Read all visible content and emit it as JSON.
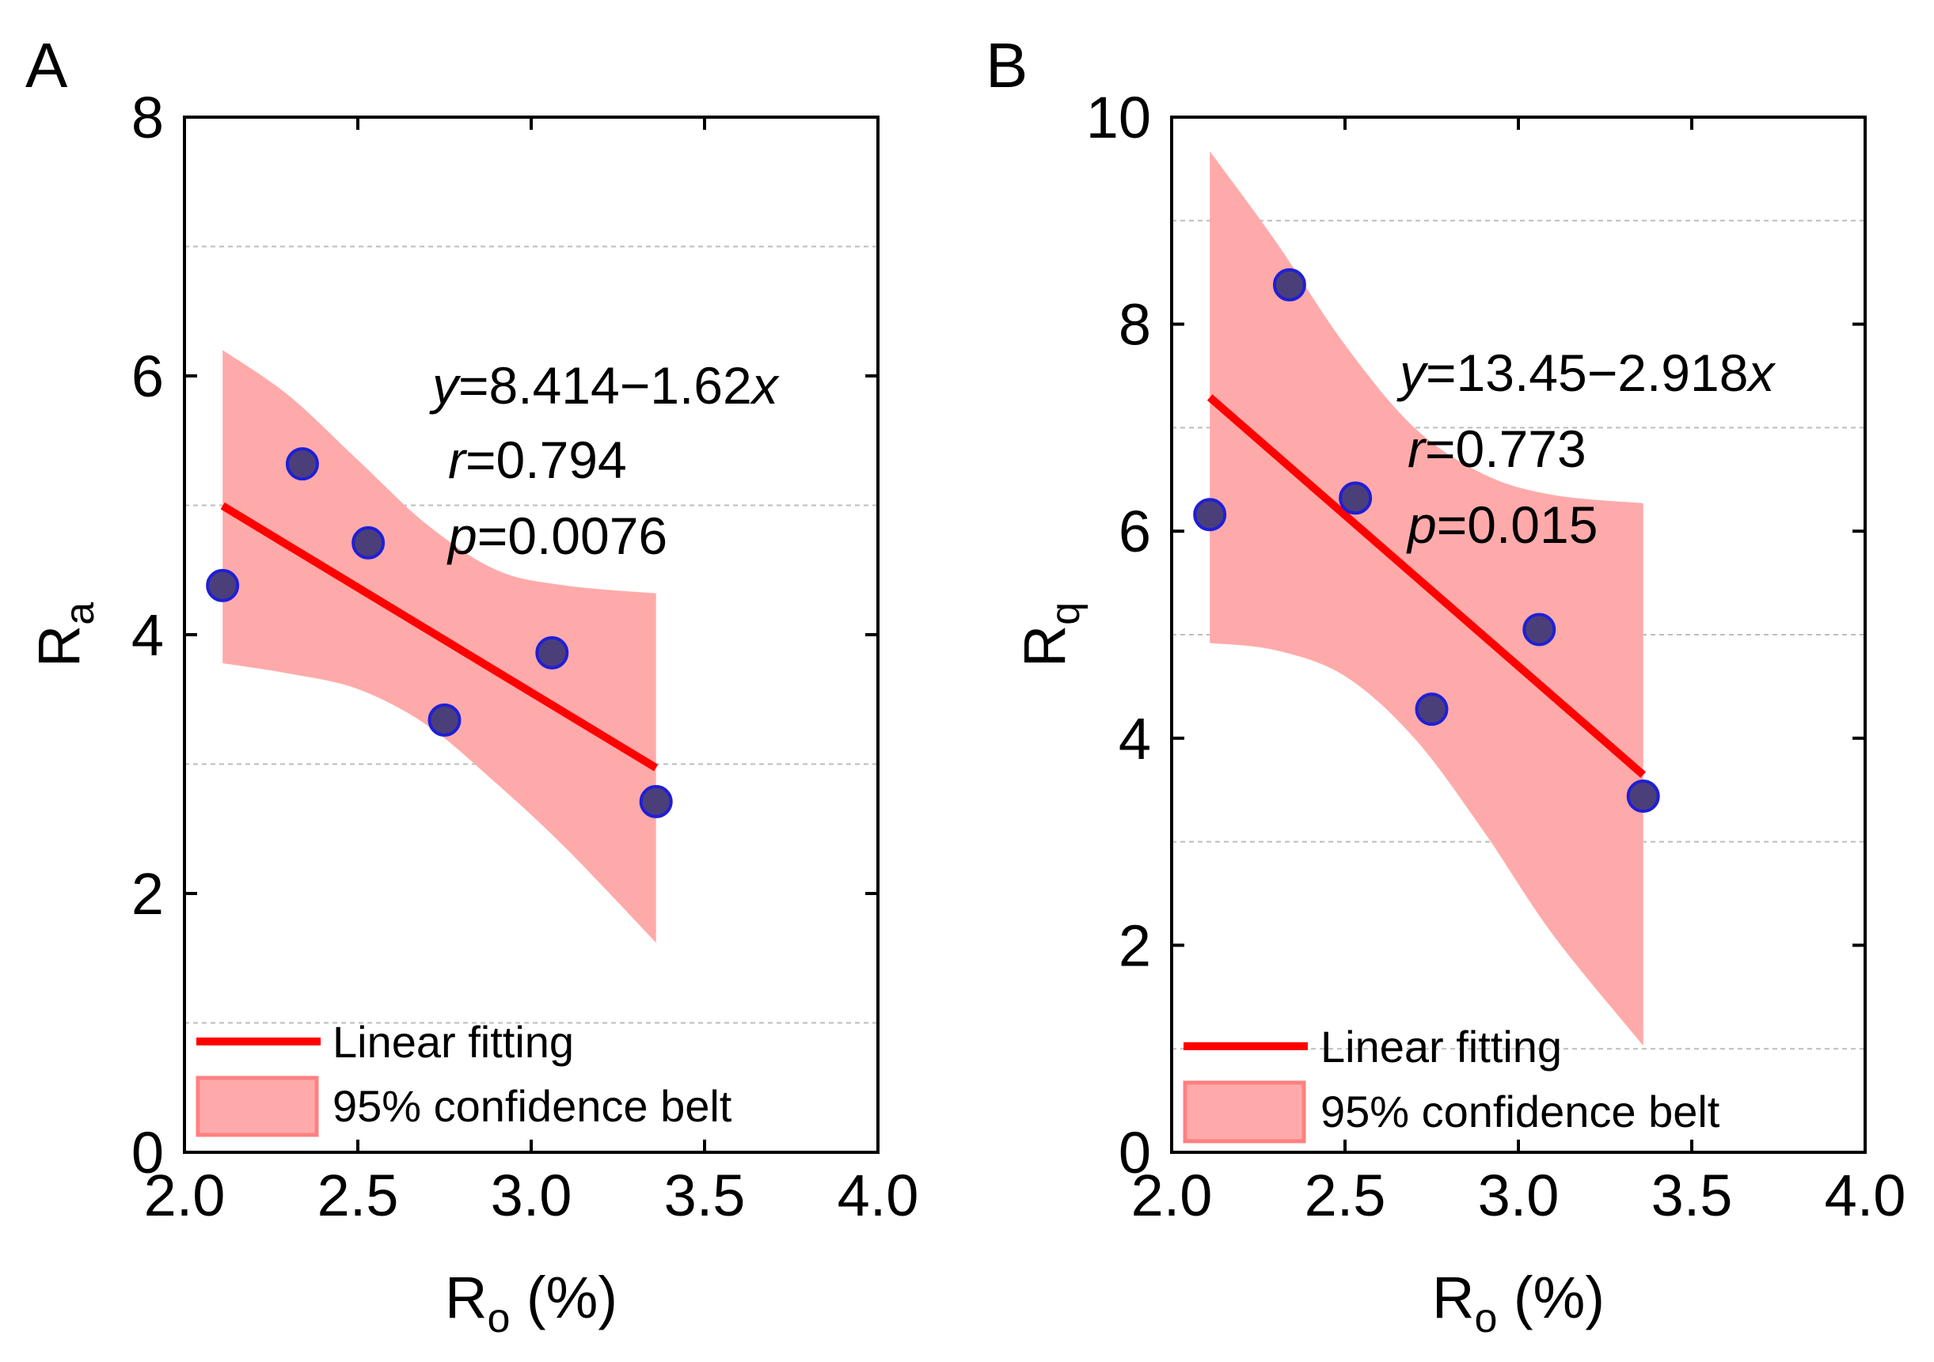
{
  "chart_data": [
    {
      "type": "scatter",
      "panel_label": "A",
      "xlabel_main": "R",
      "xlabel_sub": "o",
      "xlabel_unit": " (%)",
      "ylabel_main": "R",
      "ylabel_sub": "a",
      "xlim": [
        2.0,
        4.0
      ],
      "ylim": [
        0,
        8
      ],
      "xticks": [
        2.0,
        2.5,
        3.0,
        3.5,
        4.0
      ],
      "xtick_labels": [
        "2.0",
        "2.5",
        "3.0",
        "3.5",
        "4.0"
      ],
      "yticks": [
        0,
        2,
        4,
        6,
        8
      ],
      "ytick_labels": [
        "0",
        "2",
        "4",
        "6",
        "8"
      ],
      "y_gridlines": [
        1,
        3,
        5,
        7
      ],
      "points": {
        "x": [
          2.11,
          2.34,
          2.53,
          2.75,
          3.06,
          3.36
        ],
        "y": [
          4.38,
          5.32,
          4.71,
          3.34,
          3.86,
          2.71
        ]
      },
      "fit": {
        "x": [
          2.11,
          3.36
        ],
        "y": [
          4.996,
          2.971
        ]
      },
      "confidence_band": {
        "x": [
          2.11,
          2.3,
          2.5,
          2.7,
          2.9,
          3.1,
          3.36
        ],
        "upper": [
          6.2,
          5.85,
          5.35,
          4.85,
          4.5,
          4.38,
          4.32
        ],
        "lower": [
          3.78,
          3.7,
          3.58,
          3.3,
          2.85,
          2.35,
          1.62
        ]
      },
      "equation": {
        "y_var": "y",
        "y_rest": "=8.414−1.62",
        "x_var": "x"
      },
      "r_stat": {
        "var": "r",
        "value": "=0.794"
      },
      "p_stat": {
        "var": "p",
        "value": "=0.0076"
      },
      "legend": {
        "fit_label": "Linear fitting",
        "band_label": "95% confidence belt",
        "position": "bottom-left"
      }
    },
    {
      "type": "scatter",
      "panel_label": "B",
      "xlabel_main": "R",
      "xlabel_sub": "o",
      "xlabel_unit": " (%)",
      "ylabel_main": "R",
      "ylabel_sub": "q",
      "xlim": [
        2.0,
        4.0
      ],
      "ylim": [
        0,
        10
      ],
      "xticks": [
        2.0,
        2.5,
        3.0,
        3.5,
        4.0
      ],
      "xtick_labels": [
        "2.0",
        "2.5",
        "3.0",
        "3.5",
        "4.0"
      ],
      "yticks": [
        0,
        2,
        4,
        6,
        8,
        10
      ],
      "ytick_labels": [
        "0",
        "2",
        "4",
        "6",
        "8",
        "10"
      ],
      "y_gridlines": [
        1,
        3,
        5,
        7,
        9
      ],
      "points": {
        "x": [
          2.11,
          2.34,
          2.53,
          2.75,
          3.06,
          3.36
        ],
        "y": [
          6.16,
          8.38,
          6.32,
          4.28,
          5.05,
          3.44
        ]
      },
      "fit": {
        "x": [
          2.11,
          3.36
        ],
        "y": [
          7.293,
          3.646
        ]
      },
      "confidence_band": {
        "x": [
          2.11,
          2.3,
          2.5,
          2.7,
          2.9,
          3.1,
          3.36
        ],
        "upper": [
          9.67,
          8.8,
          7.8,
          7.0,
          6.55,
          6.35,
          6.27
        ],
        "lower": [
          4.92,
          4.85,
          4.6,
          4.0,
          3.1,
          2.1,
          1.03
        ]
      },
      "equation": {
        "y_var": "y",
        "y_rest": "=13.45−2.918",
        "x_var": "x"
      },
      "r_stat": {
        "var": "r",
        "value": "=0.773"
      },
      "p_stat": {
        "var": "p",
        "value": "=0.015"
      },
      "legend": {
        "fit_label": "Linear fitting",
        "band_label": "95% confidence belt",
        "position": "bottom-left"
      }
    }
  ],
  "colors": {
    "point_fill": "#4b3f7a",
    "point_stroke": "#1f1fd6",
    "fit_line": "#ff0000",
    "band_fill": "#ffaaaa",
    "band_stroke": "#ff8080",
    "grid": "#bdbdbd"
  }
}
